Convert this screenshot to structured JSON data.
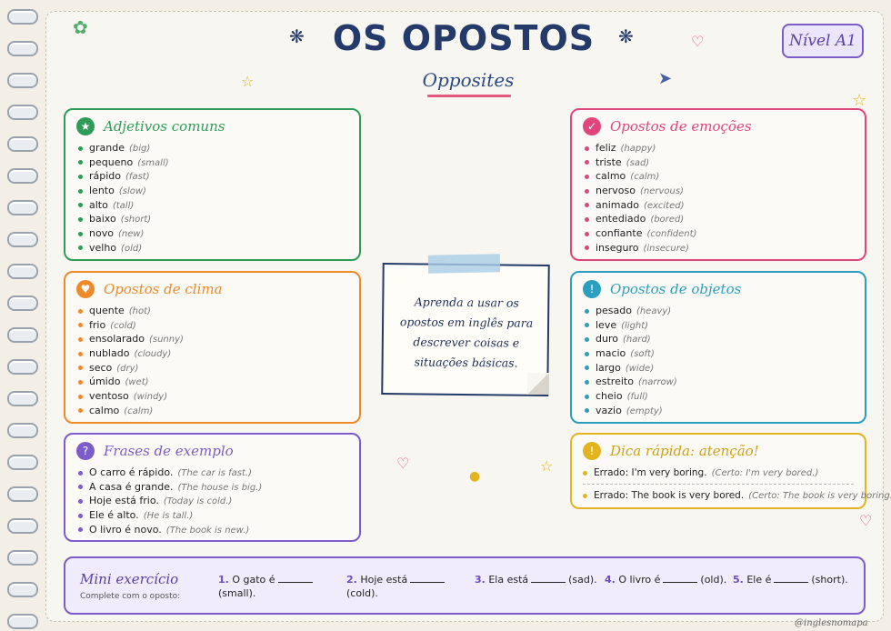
{
  "header": {
    "title": "OS OPOSTOS",
    "subtitle": "Opposites",
    "level": "Nível A1"
  },
  "cards": {
    "adjetivos": {
      "title": "Adjetivos comuns",
      "icon": "star-icon",
      "color": "#2e9b57",
      "items": [
        {
          "pt": "grande",
          "en": "(big)"
        },
        {
          "pt": "pequeno",
          "en": "(small)"
        },
        {
          "pt": "rápido",
          "en": "(fast)"
        },
        {
          "pt": "lento",
          "en": "(slow)"
        },
        {
          "pt": "alto",
          "en": "(tall)"
        },
        {
          "pt": "baixo",
          "en": "(short)"
        },
        {
          "pt": "novo",
          "en": "(new)"
        },
        {
          "pt": "velho",
          "en": "(old)"
        }
      ]
    },
    "emocoes": {
      "title": "Opostos de emoções",
      "icon": "check-icon",
      "color": "#e0457b",
      "items": [
        {
          "pt": "feliz",
          "en": "(happy)"
        },
        {
          "pt": "triste",
          "en": "(sad)"
        },
        {
          "pt": "calmo",
          "en": "(calm)"
        },
        {
          "pt": "nervoso",
          "en": "(nervous)"
        },
        {
          "pt": "animado",
          "en": "(excited)"
        },
        {
          "pt": "entediado",
          "en": "(bored)"
        },
        {
          "pt": "confiante",
          "en": "(confident)"
        },
        {
          "pt": "inseguro",
          "en": "(insecure)"
        }
      ]
    },
    "clima": {
      "title": "Opostos de clima",
      "icon": "heart-icon",
      "color": "#ef8a2a",
      "items": [
        {
          "pt": "quente",
          "en": "(hot)"
        },
        {
          "pt": "frio",
          "en": "(cold)"
        },
        {
          "pt": "ensolarado",
          "en": "(sunny)"
        },
        {
          "pt": "nublado",
          "en": "(cloudy)"
        },
        {
          "pt": "seco",
          "en": "(dry)"
        },
        {
          "pt": "úmido",
          "en": "(wet)"
        },
        {
          "pt": "ventoso",
          "en": "(windy)"
        },
        {
          "pt": "calmo",
          "en": "(calm)"
        }
      ]
    },
    "objetos": {
      "title": "Opostos de objetos",
      "icon": "exclamation-icon",
      "color": "#2a9fbf",
      "items": [
        {
          "pt": "pesado",
          "en": "(heavy)"
        },
        {
          "pt": "leve",
          "en": "(light)"
        },
        {
          "pt": "duro",
          "en": "(hard)"
        },
        {
          "pt": "macio",
          "en": "(soft)"
        },
        {
          "pt": "largo",
          "en": "(wide)"
        },
        {
          "pt": "estreito",
          "en": "(narrow)"
        },
        {
          "pt": "cheio",
          "en": "(full)"
        },
        {
          "pt": "vazio",
          "en": "(empty)"
        }
      ]
    },
    "frases": {
      "title": "Frases de exemplo",
      "icon": "question-icon",
      "color": "#7b5cc9",
      "items": [
        {
          "pt": "O carro é rápido.",
          "en": "(The car is fast.)"
        },
        {
          "pt": "A casa é grande.",
          "en": "(The house is big.)"
        },
        {
          "pt": "Hoje está frio.",
          "en": "(Today is cold.)"
        },
        {
          "pt": "Ele é alto.",
          "en": "(He is tall.)"
        },
        {
          "pt": "O livro é novo.",
          "en": "(The book is new.)"
        }
      ]
    }
  },
  "note": {
    "text": "Aprenda a usar os opostos em inglês para descrever coisas e situações básicas."
  },
  "tip": {
    "title": "Dica rápida: atenção!",
    "color": "#e3b420",
    "rows": [
      {
        "wrong": "Errado: I'm very boring.",
        "right": "(Certo: I'm very bored.)"
      },
      {
        "wrong": "Errado: The book is very bored.",
        "right": "(Certo: The book is very boring.)"
      }
    ]
  },
  "mini": {
    "title": "Mini exercício",
    "subtitle": "Complete com o oposto:",
    "exercises": [
      {
        "num": "1.",
        "before": "O gato é",
        "after": "(small)."
      },
      {
        "num": "2.",
        "before": "Hoje está",
        "after": "(cold)."
      },
      {
        "num": "3.",
        "before": "Ela está",
        "after": "(sad)."
      },
      {
        "num": "4.",
        "before": "O livro é",
        "after": "(old)."
      },
      {
        "num": "5.",
        "before": "Ele é",
        "after": "(short)."
      }
    ]
  },
  "footer": {
    "handle": "@inglesnomapa"
  }
}
